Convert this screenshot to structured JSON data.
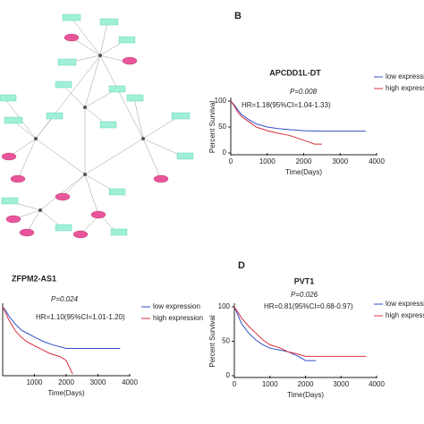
{
  "panel_labels": [
    "B",
    "D"
  ],
  "chart_data": [
    {
      "type": "survival",
      "title": "APCDD1L-DT",
      "annotations": [
        "P=0.008",
        "HR=1.18(95%CI=1.04-1.33)"
      ],
      "ylabel": "Percent Survival",
      "xlabel": "Time(Days)",
      "xlim": [
        0,
        4000
      ],
      "xticks": [
        0,
        1000,
        2000,
        3000,
        4000
      ],
      "ylim": [
        0,
        100
      ],
      "yticks": [
        0,
        50,
        100
      ],
      "series": [
        {
          "name": "low expression",
          "color": "#3050c8",
          "x": [
            0,
            100,
            200,
            300,
            500,
            700,
            1000,
            1300,
            1600,
            2000,
            2500,
            3700
          ],
          "values": [
            100,
            92,
            82,
            74,
            64,
            56,
            50,
            47,
            45,
            43,
            42,
            42
          ]
        },
        {
          "name": "high expression",
          "color": "#d83040",
          "x": [
            0,
            100,
            200,
            300,
            500,
            700,
            1000,
            1300,
            1600,
            1900,
            2100,
            2300,
            2500
          ],
          "values": [
            100,
            90,
            78,
            70,
            60,
            50,
            43,
            38,
            34,
            27,
            22,
            17,
            17
          ]
        }
      ]
    },
    {
      "type": "survival",
      "title": "ZFPM2-AS1",
      "annotations": [
        "P=0.024",
        "HR=1.10(95%CI=1.01-1.20)"
      ],
      "xlabel": "Time(Days)",
      "xlim": [
        0,
        4000
      ],
      "xticks": [
        1000,
        2000,
        3000,
        4000
      ],
      "ylim": [
        0,
        100
      ],
      "series": [
        {
          "name": "low expression",
          "color": "#3050c8",
          "x": [
            0,
            100,
            200,
            400,
            600,
            800,
            1000,
            1300,
            1600,
            2000,
            2500,
            3700
          ],
          "values": [
            100,
            94,
            86,
            74,
            65,
            60,
            55,
            48,
            43,
            38,
            38,
            38
          ]
        },
        {
          "name": "high expression",
          "color": "#d83040",
          "x": [
            0,
            100,
            200,
            400,
            600,
            800,
            1000,
            1300,
            1500,
            1800,
            2000,
            2100,
            2200
          ],
          "values": [
            100,
            90,
            80,
            64,
            54,
            47,
            42,
            35,
            30,
            26,
            20,
            10,
            0
          ]
        }
      ]
    },
    {
      "type": "survival",
      "title": "PVT1",
      "annotations": [
        "P=0.026",
        "HR=0.81(95%CI=0.68-0.97)"
      ],
      "ylabel": "Percent Survival",
      "xlabel": "Time(Days)",
      "xlim": [
        0,
        4000
      ],
      "xticks": [
        0,
        1000,
        2000,
        3000,
        4000
      ],
      "ylim": [
        0,
        100
      ],
      "yticks": [
        0,
        50,
        100
      ],
      "series": [
        {
          "name": "low expression",
          "color": "#3050c8",
          "x": [
            0,
            100,
            200,
            400,
            600,
            800,
            1000,
            1300,
            1500,
            1800,
            2000,
            2300
          ],
          "values": [
            100,
            88,
            76,
            62,
            52,
            45,
            40,
            37,
            35,
            28,
            22,
            22
          ]
        },
        {
          "name": "high expression",
          "color": "#d83040",
          "x": [
            0,
            100,
            200,
            400,
            600,
            800,
            1000,
            1300,
            1500,
            1800,
            2000,
            2500,
            3700
          ],
          "values": [
            100,
            92,
            84,
            72,
            62,
            52,
            45,
            40,
            35,
            31,
            28,
            28,
            28
          ]
        }
      ]
    }
  ]
}
